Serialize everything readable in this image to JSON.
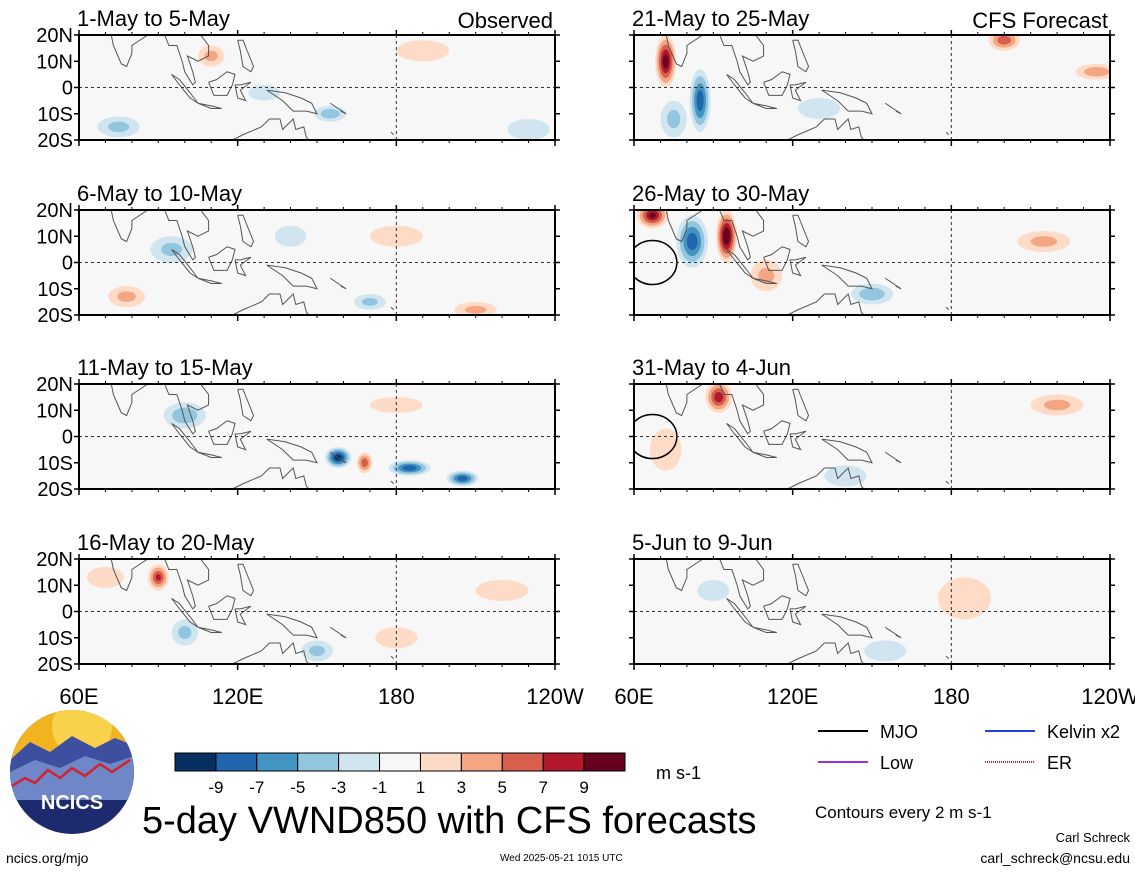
{
  "figure": {
    "title": "5-day VWND850 with CFS forecasts",
    "footer_url": "ncics.org/mjo",
    "timestamp": "Wed 2025-05-21 1015 UTC",
    "author": "Carl Schreck",
    "email": "carl_schreck@ncsu.edu",
    "logo_text": "NCICS",
    "units": "m s-1",
    "contour_note": "Contours every 2 m s-1"
  },
  "chart_data": {
    "type": "heatmap",
    "variable": "VWND850",
    "units": "m s-1",
    "x_ticks": [
      "60E",
      "120E",
      "180",
      "120W"
    ],
    "x_tick_values": [
      60,
      120,
      180,
      240
    ],
    "xlim": [
      60,
      240
    ],
    "y_ticks": [
      "20N",
      "10N",
      "0",
      "10S",
      "20S"
    ],
    "y_tick_values": [
      20,
      10,
      0,
      -10,
      -20
    ],
    "ylim": [
      -20,
      20
    ],
    "colorbar": {
      "levels": [
        -11,
        -9,
        -7,
        -5,
        -3,
        -1,
        1,
        3,
        5,
        7,
        9,
        11
      ],
      "tick_labels": [
        "-9",
        "-7",
        "-5",
        "-3",
        "-1",
        "1",
        "3",
        "5",
        "7",
        "9"
      ],
      "colors": [
        "#053061",
        "#2166ac",
        "#4393c3",
        "#92c5de",
        "#d1e5f0",
        "#f7f7f7",
        "#fddbc7",
        "#f4a582",
        "#d6604d",
        "#b2182b",
        "#67001f"
      ]
    },
    "legend": [
      {
        "label": "MJO",
        "color": "#000000",
        "style": "solid"
      },
      {
        "label": "Kelvin x2",
        "color": "#1f3fe0",
        "style": "solid"
      },
      {
        "label": "Low",
        "color": "#9b30e8",
        "style": "solid"
      },
      {
        "label": "ER",
        "color": "#e02020",
        "style": "dotted"
      }
    ],
    "panels": [
      {
        "label": "1-May to 5-May",
        "tag": "Observed",
        "blobs": [
          [
            155,
            -10,
            6,
            3,
            -4
          ],
          [
            110,
            12,
            5,
            4,
            3
          ],
          [
            190,
            14,
            10,
            4,
            2
          ],
          [
            75,
            -15,
            8,
            4,
            -3
          ],
          [
            130,
            -2,
            6,
            3,
            -2
          ],
          [
            230,
            -16,
            8,
            4,
            -2
          ]
        ]
      },
      {
        "label": "6-May to 10-May",
        "blobs": [
          [
            95,
            5,
            8,
            5,
            -3
          ],
          [
            170,
            -15,
            6,
            3,
            -3
          ],
          [
            210,
            -18,
            8,
            3,
            3
          ],
          [
            140,
            10,
            6,
            4,
            -2
          ],
          [
            180,
            10,
            10,
            4,
            2
          ],
          [
            78,
            -13,
            7,
            4,
            3
          ]
        ]
      },
      {
        "label": "11-May to 15-May",
        "blobs": [
          [
            158,
            -8,
            5,
            4,
            -10
          ],
          [
            168,
            -10,
            3,
            4,
            6
          ],
          [
            185,
            -12,
            8,
            3,
            -8
          ],
          [
            205,
            -16,
            6,
            3,
            -8
          ],
          [
            100,
            8,
            8,
            5,
            -4
          ],
          [
            180,
            12,
            10,
            3,
            2
          ]
        ]
      },
      {
        "label": "16-May to 20-May",
        "blobs": [
          [
            90,
            13,
            4,
            5,
            7
          ],
          [
            150,
            -15,
            6,
            4,
            -3
          ],
          [
            180,
            -10,
            8,
            4,
            2
          ],
          [
            70,
            13,
            7,
            4,
            2
          ],
          [
            100,
            -8,
            5,
            5,
            -3
          ],
          [
            220,
            8,
            10,
            4,
            2
          ]
        ]
      },
      {
        "label": "21-May to 25-May",
        "tag": "CFS Forecast",
        "blobs": [
          [
            72,
            10,
            4,
            10,
            10
          ],
          [
            85,
            -5,
            4,
            12,
            -8
          ],
          [
            75,
            -12,
            5,
            7,
            -3
          ],
          [
            200,
            18,
            6,
            4,
            6
          ],
          [
            235,
            6,
            8,
            3,
            4
          ],
          [
            130,
            -8,
            8,
            4,
            -2
          ]
        ]
      },
      {
        "label": "26-May to 30-May",
        "blobs": [
          [
            67,
            18,
            6,
            5,
            9
          ],
          [
            82,
            8,
            6,
            10,
            -8
          ],
          [
            95,
            10,
            4,
            10,
            11
          ],
          [
            110,
            -5,
            6,
            6,
            3
          ],
          [
            150,
            -12,
            8,
            4,
            -4
          ],
          [
            215,
            8,
            10,
            4,
            3
          ]
        ]
      },
      {
        "label": "31-May to 4-Jun",
        "blobs": [
          [
            92,
            15,
            5,
            6,
            8
          ],
          [
            72,
            -5,
            6,
            8,
            2
          ],
          [
            140,
            -15,
            8,
            4,
            -2
          ],
          [
            220,
            12,
            10,
            4,
            3
          ]
        ]
      },
      {
        "label": "5-Jun to 9-Jun",
        "blobs": [
          [
            185,
            5,
            10,
            8,
            2
          ],
          [
            155,
            -15,
            8,
            4,
            -2
          ],
          [
            90,
            8,
            6,
            4,
            -2
          ]
        ]
      }
    ]
  }
}
